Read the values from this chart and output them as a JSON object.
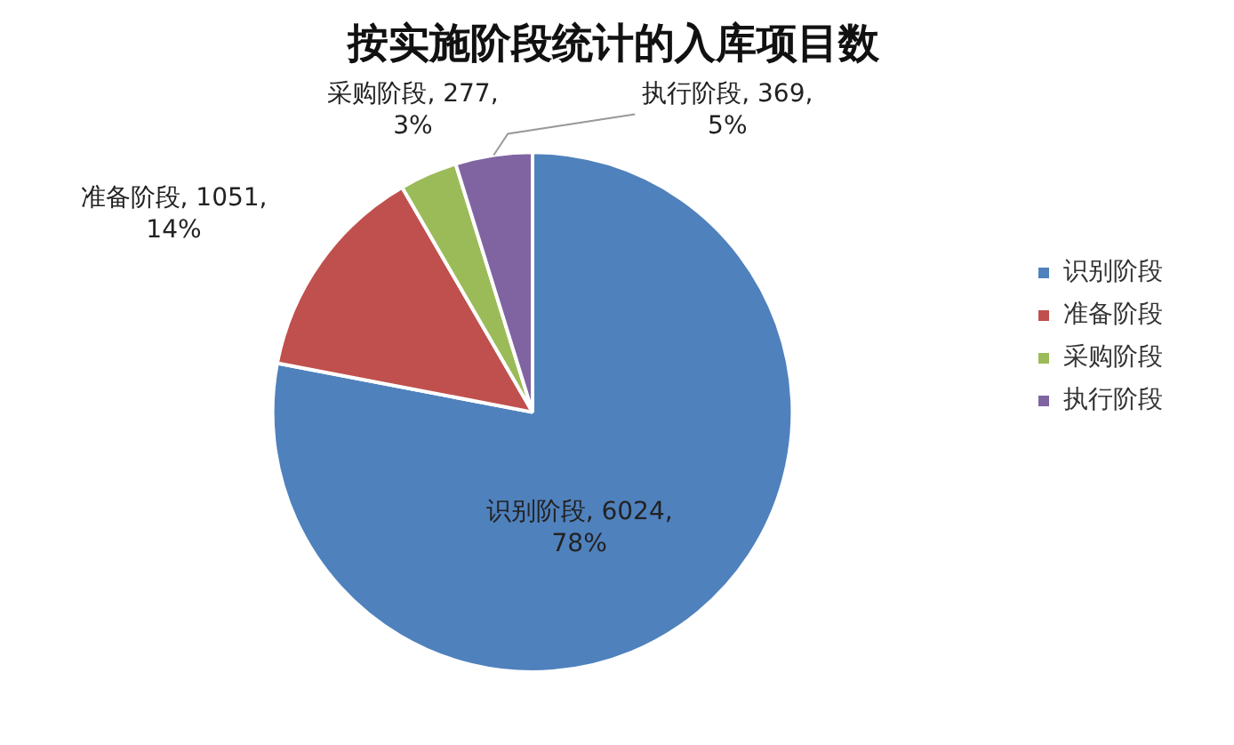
{
  "chart_data": {
    "type": "pie",
    "title": "按实施阶段统计的入库项目数",
    "categories": [
      "识别阶段",
      "准备阶段",
      "采购阶段",
      "执行阶段"
    ],
    "values": [
      6024,
      1051,
      277,
      369
    ],
    "colors": [
      "#4f81bd",
      "#c0504d",
      "#9bbb59",
      "#8064a2"
    ],
    "value_labels": [
      "识别阶段, 6024, 78%",
      "准备阶段, 1051, 14%",
      "采购阶段, 277, 3%",
      "执行阶段, 369, 5%"
    ],
    "legend": "right"
  }
}
